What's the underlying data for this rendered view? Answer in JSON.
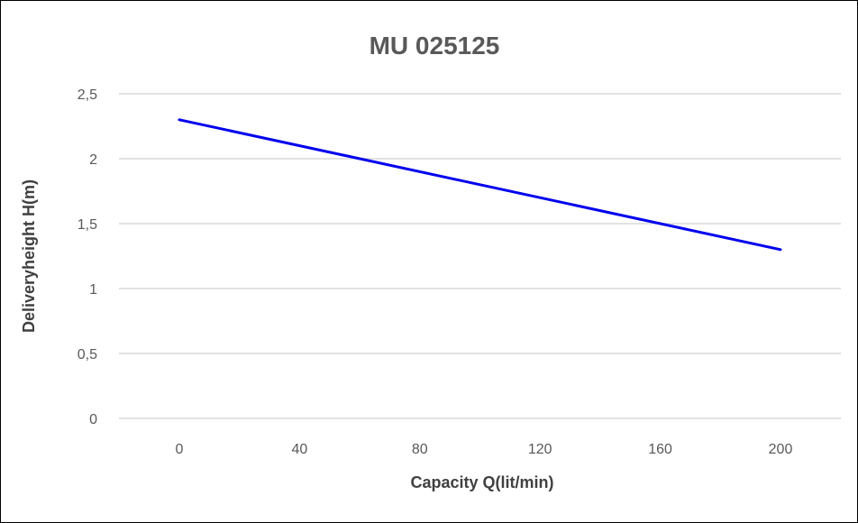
{
  "chart_data": {
    "type": "line",
    "title": "MU 025125",
    "xlabel": "Capacity Q(lit/min)",
    "ylabel": "Deliveryheight H(m)",
    "x_ticks": [
      "0",
      "40",
      "80",
      "120",
      "160",
      "200"
    ],
    "y_ticks": [
      "0",
      "0,5",
      "1",
      "1,5",
      "2",
      "2,5"
    ],
    "xlim": [
      0,
      200
    ],
    "ylim": [
      0,
      2.5
    ],
    "grid": "horizontal",
    "series": [
      {
        "x": [
          0,
          200
        ],
        "y": [
          2.3,
          1.3
        ],
        "color": "#0000ee"
      }
    ]
  }
}
